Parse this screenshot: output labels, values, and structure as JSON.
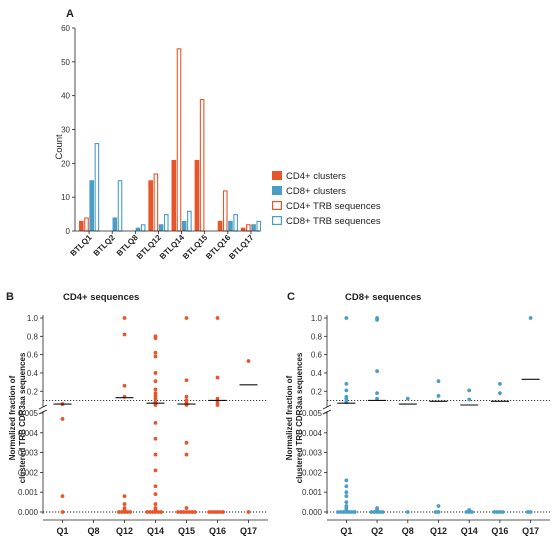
{
  "chart_data": [
    {
      "panel": "A",
      "type": "bar",
      "ylabel": "Count",
      "ylim": [
        0,
        60
      ],
      "yticks": [
        0,
        10,
        20,
        30,
        40,
        50,
        60
      ],
      "categories": [
        "BTLQ1",
        "BTLQ2",
        "BTLQ8",
        "BTLQ12",
        "BTLQ14",
        "BTLQ15",
        "BTLQ16",
        "BTLQ17"
      ],
      "series": [
        {
          "name": "CD4+ clusters",
          "color": "#e8552b",
          "style": "filled",
          "values": [
            3,
            0,
            0,
            15,
            21,
            21,
            3,
            1
          ]
        },
        {
          "name": "CD8+ clusters",
          "color": "#4a9dc5",
          "style": "filled",
          "values": [
            15,
            4,
            1,
            2,
            3,
            0,
            3,
            2
          ]
        },
        {
          "name": "CD4+ TRB sequences",
          "color": "#e8552b",
          "style": "outline",
          "values": [
            4,
            0,
            0,
            17,
            54,
            39,
            12,
            2
          ]
        },
        {
          "name": "CD8+ TRB sequences",
          "color": "#4a9dc5",
          "style": "outline",
          "values": [
            26,
            15,
            2,
            5,
            6,
            0,
            5,
            3
          ]
        }
      ],
      "legend": "right"
    },
    {
      "panel": "B",
      "type": "scatter",
      "title": "CD4+ sequences",
      "ylabel_lines": [
        "Normalized fraction of",
        "clustered TRB CDR3aa sequences"
      ],
      "categories": [
        "Q1",
        "Q8",
        "Q12",
        "Q14",
        "Q15",
        "Q16",
        "Q17"
      ],
      "y_upper_ticks": [
        "1.0",
        "0.8",
        "0.6",
        "0.4",
        "0.2"
      ],
      "y_lower_ticks": [
        "0.005",
        "0.004",
        "0.003",
        "0.002",
        "0.001",
        "0.000"
      ],
      "threshold": 0.1,
      "color": "#e8552b",
      "points": {
        "Q1": [
          0.06,
          0.0047,
          0.0008,
          0.0
        ],
        "Q8": [],
        "Q12": [
          1.0,
          0.82,
          0.26,
          0.14,
          0.0008,
          0.0004,
          0.0002,
          0.0001,
          0.0,
          0.0,
          0.0,
          0.0,
          0.0
        ],
        "Q14": [
          0.8,
          0.78,
          0.62,
          0.58,
          0.4,
          0.31,
          0.22,
          0.18,
          0.15,
          0.12,
          0.08,
          0.07,
          0.06,
          0.05,
          0.0045,
          0.0037,
          0.0029,
          0.0021,
          0.0013,
          0.0009,
          0.0004,
          0.0002,
          0.0001,
          0.0,
          0.0,
          0.0,
          0.0,
          0.0,
          0.0
        ],
        "Q15": [
          1.0,
          0.32,
          0.14,
          0.1,
          0.07,
          0.06,
          0.05,
          0.0035,
          0.0029,
          0.0002,
          0.0,
          0.0,
          0.0,
          0.0,
          0.0,
          0.0,
          0.0
        ],
        "Q16": [
          1.0,
          0.35,
          0.12,
          0.08,
          0.04,
          0.0,
          0.0,
          0.0,
          0.0,
          0.0,
          0.0
        ],
        "Q17": [
          0.53,
          0.0
        ]
      },
      "means": {
        "Q1": 0.06,
        "Q12": 0.13,
        "Q14": 0.07,
        "Q15": 0.06,
        "Q16": 0.1,
        "Q17": 0.27
      }
    },
    {
      "panel": "C",
      "type": "scatter",
      "title": "CD8+ sequences",
      "ylabel_lines": [
        "Normalized fraction of",
        "clustered TRB CDR3aa sequences"
      ],
      "categories": [
        "Q1",
        "Q2",
        "Q8",
        "Q12",
        "Q14",
        "Q16",
        "Q17"
      ],
      "y_upper_ticks": [
        "1.0",
        "0.8",
        "0.6",
        "0.4",
        "0.2"
      ],
      "y_lower_ticks": [
        "0.005",
        "0.004",
        "0.003",
        "0.002",
        "0.001",
        "0.000"
      ],
      "threshold": 0.1,
      "color": "#4a9dc5",
      "points": {
        "Q1": [
          1.0,
          0.28,
          0.21,
          0.14,
          0.12,
          0.09,
          0.08,
          0.0016,
          0.0013,
          0.001,
          0.0008,
          0.0005,
          0.0003,
          0.0002,
          0.0001,
          0.0,
          0.0,
          0.0,
          0.0,
          0.0,
          0.0,
          0.0
        ],
        "Q2": [
          1.0,
          0.98,
          0.42,
          0.18,
          0.12,
          0.0002,
          0.0001,
          0.0,
          0.0,
          0.0,
          0.0,
          0.0
        ],
        "Q8": [
          0.12,
          0.0
        ],
        "Q12": [
          0.31,
          0.15,
          0.0003,
          0.0,
          0.0
        ],
        "Q14": [
          0.21,
          0.11,
          0.0001,
          0.0,
          0.0,
          0.0
        ],
        "Q16": [
          0.28,
          0.18,
          0.0,
          0.0,
          0.0,
          0.0
        ],
        "Q17": [
          1.0,
          0.0,
          0.0
        ]
      },
      "means": {
        "Q1": 0.07,
        "Q2": 0.1,
        "Q8": 0.06,
        "Q12": 0.09,
        "Q14": 0.05,
        "Q16": 0.09,
        "Q17": 0.33
      }
    }
  ]
}
